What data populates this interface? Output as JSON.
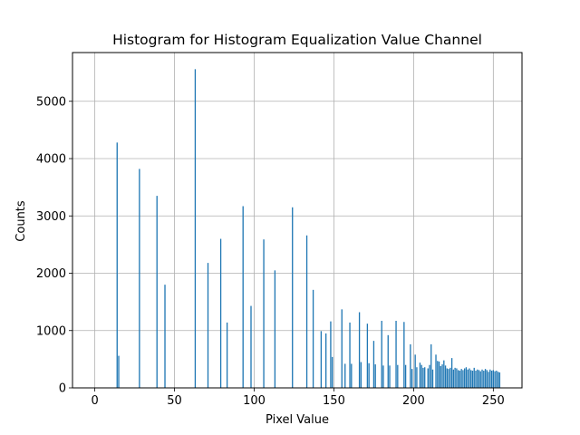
{
  "chart_data": {
    "type": "bar",
    "title": "Histogram for Histogram Equalization Value Channel",
    "xlabel": "Pixel Value",
    "ylabel": "Counts",
    "xlim": [
      -14,
      268
    ],
    "ylim": [
      0,
      5850
    ],
    "xticks": [
      0,
      50,
      100,
      150,
      200,
      250
    ],
    "yticks": [
      0,
      1000,
      2000,
      3000,
      4000,
      5000
    ],
    "grid": true,
    "bar_color": "#1f77b4",
    "bars": [
      {
        "x": 14,
        "y": 4280
      },
      {
        "x": 15,
        "y": 560
      },
      {
        "x": 28,
        "y": 3820
      },
      {
        "x": 39,
        "y": 3350
      },
      {
        "x": 44,
        "y": 1800
      },
      {
        "x": 63,
        "y": 5560
      },
      {
        "x": 71,
        "y": 2180
      },
      {
        "x": 79,
        "y": 2600
      },
      {
        "x": 83,
        "y": 1140
      },
      {
        "x": 93,
        "y": 3170
      },
      {
        "x": 98,
        "y": 1430
      },
      {
        "x": 106,
        "y": 2590
      },
      {
        "x": 113,
        "y": 2050
      },
      {
        "x": 124,
        "y": 3150
      },
      {
        "x": 133,
        "y": 2660
      },
      {
        "x": 137,
        "y": 1710
      },
      {
        "x": 142,
        "y": 990
      },
      {
        "x": 145,
        "y": 950
      },
      {
        "x": 148,
        "y": 1160
      },
      {
        "x": 149,
        "y": 540
      },
      {
        "x": 155,
        "y": 1370
      },
      {
        "x": 157,
        "y": 420
      },
      {
        "x": 160,
        "y": 1140
      },
      {
        "x": 161,
        "y": 420
      },
      {
        "x": 166,
        "y": 1320
      },
      {
        "x": 167,
        "y": 450
      },
      {
        "x": 171,
        "y": 1120
      },
      {
        "x": 172,
        "y": 430
      },
      {
        "x": 175,
        "y": 820
      },
      {
        "x": 176,
        "y": 410
      },
      {
        "x": 180,
        "y": 1170
      },
      {
        "x": 181,
        "y": 390
      },
      {
        "x": 184,
        "y": 920
      },
      {
        "x": 185,
        "y": 390
      },
      {
        "x": 189,
        "y": 1170
      },
      {
        "x": 190,
        "y": 400
      },
      {
        "x": 194,
        "y": 1150
      },
      {
        "x": 195,
        "y": 400
      },
      {
        "x": 198,
        "y": 760
      },
      {
        "x": 199,
        "y": 330
      },
      {
        "x": 201,
        "y": 580
      },
      {
        "x": 202,
        "y": 360
      },
      {
        "x": 204,
        "y": 440
      },
      {
        "x": 205,
        "y": 400
      },
      {
        "x": 206,
        "y": 350
      },
      {
        "x": 207,
        "y": 360
      },
      {
        "x": 209,
        "y": 340
      },
      {
        "x": 210,
        "y": 400
      },
      {
        "x": 211,
        "y": 760
      },
      {
        "x": 212,
        "y": 320
      },
      {
        "x": 214,
        "y": 580
      },
      {
        "x": 215,
        "y": 470
      },
      {
        "x": 216,
        "y": 460
      },
      {
        "x": 217,
        "y": 380
      },
      {
        "x": 218,
        "y": 410
      },
      {
        "x": 219,
        "y": 480
      },
      {
        "x": 220,
        "y": 390
      },
      {
        "x": 221,
        "y": 340
      },
      {
        "x": 222,
        "y": 330
      },
      {
        "x": 223,
        "y": 350
      },
      {
        "x": 224,
        "y": 520
      },
      {
        "x": 225,
        "y": 320
      },
      {
        "x": 226,
        "y": 350
      },
      {
        "x": 227,
        "y": 340
      },
      {
        "x": 228,
        "y": 310
      },
      {
        "x": 229,
        "y": 300
      },
      {
        "x": 230,
        "y": 330
      },
      {
        "x": 231,
        "y": 310
      },
      {
        "x": 232,
        "y": 340
      },
      {
        "x": 233,
        "y": 360
      },
      {
        "x": 234,
        "y": 320
      },
      {
        "x": 235,
        "y": 340
      },
      {
        "x": 236,
        "y": 310
      },
      {
        "x": 237,
        "y": 300
      },
      {
        "x": 238,
        "y": 350
      },
      {
        "x": 239,
        "y": 300
      },
      {
        "x": 240,
        "y": 320
      },
      {
        "x": 241,
        "y": 310
      },
      {
        "x": 242,
        "y": 290
      },
      {
        "x": 243,
        "y": 320
      },
      {
        "x": 244,
        "y": 300
      },
      {
        "x": 245,
        "y": 330
      },
      {
        "x": 246,
        "y": 310
      },
      {
        "x": 247,
        "y": 280
      },
      {
        "x": 248,
        "y": 320
      },
      {
        "x": 249,
        "y": 300
      },
      {
        "x": 250,
        "y": 310
      },
      {
        "x": 251,
        "y": 290
      },
      {
        "x": 252,
        "y": 300
      },
      {
        "x": 253,
        "y": 280
      },
      {
        "x": 254,
        "y": 270
      }
    ]
  }
}
